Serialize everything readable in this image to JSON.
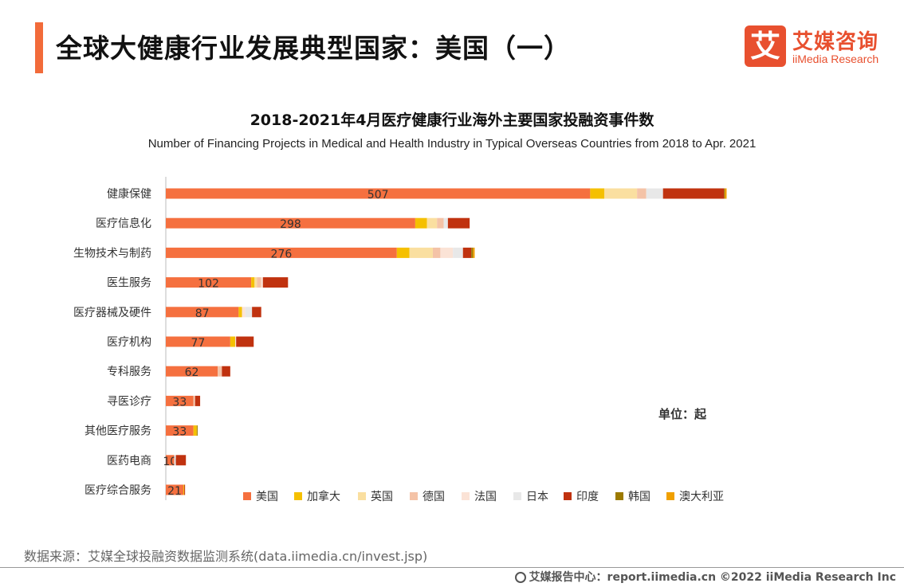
{
  "header": {
    "title": "全球大健康行业发展典型国家：美国（一）",
    "logo_mark": "艾",
    "logo_cn": "艾媒咨询",
    "logo_en": "iiMedia Research"
  },
  "unit_label": "单位：起",
  "source": "数据来源：艾媒全球投融资数据监测系统(data.iimedia.cn/invest.jsp)",
  "footer": {
    "text": "艾媒报告中心：report.iimedia.cn  ©2022  iiMedia Research  Inc",
    "icon": "globe-icon"
  },
  "chart_data": {
    "type": "bar",
    "orientation": "horizontal",
    "stacked": true,
    "title": "2018-2021年4月医疗健康行业海外主要国家投融资事件数",
    "subtitle": "Number of Financing Projects in Medical and Health Industry in Typical Overseas Countries from  2018 to Apr. 2021",
    "xlabel": "",
    "ylabel": "",
    "unit": "起",
    "legend_position": "bottom",
    "categories": [
      "健康保健",
      "医疗信息化",
      "生物技术与制药",
      "医生服务",
      "医疗器械及硬件",
      "医疗机构",
      "专科服务",
      "寻医诊疗",
      "其他医疗服务",
      "医药电商",
      "医疗综合服务"
    ],
    "series": [
      {
        "name": "美国",
        "color": "#F5703F",
        "values": [
          507,
          298,
          276,
          102,
          87,
          77,
          62,
          33,
          33,
          10,
          21
        ]
      },
      {
        "name": "加拿大",
        "color": "#F5C000",
        "values": [
          17,
          14,
          15,
          4,
          4,
          6,
          0,
          0,
          4,
          0,
          1
        ]
      },
      {
        "name": "英国",
        "color": "#FADFA0",
        "values": [
          39,
          12,
          28,
          3,
          0,
          0,
          0,
          0,
          0,
          0,
          0
        ]
      },
      {
        "name": "德国",
        "color": "#F4C3A7",
        "values": [
          11,
          8,
          9,
          5,
          0,
          0,
          5,
          2,
          0,
          0,
          0
        ]
      },
      {
        "name": "法国",
        "color": "#FBE3D6",
        "values": [
          0,
          0,
          15,
          2,
          4,
          1,
          0,
          0,
          0,
          0,
          0
        ]
      },
      {
        "name": "日本",
        "color": "#E8E8E8",
        "values": [
          20,
          5,
          12,
          0,
          8,
          0,
          0,
          0,
          0,
          2,
          0
        ]
      },
      {
        "name": "印度",
        "color": "#C0320F",
        "values": [
          73,
          26,
          10,
          30,
          11,
          21,
          10,
          6,
          0,
          12,
          1
        ]
      },
      {
        "name": "韩国",
        "color": "#9C7A00",
        "values": [
          1,
          0,
          2,
          0,
          0,
          0,
          0,
          0,
          1,
          0,
          0
        ]
      },
      {
        "name": "澳大利亚",
        "color": "#F0A000",
        "values": [
          2,
          0,
          2,
          0,
          0,
          0,
          0,
          0,
          0,
          0,
          0
        ]
      }
    ],
    "data_labels_series": "美国"
  }
}
